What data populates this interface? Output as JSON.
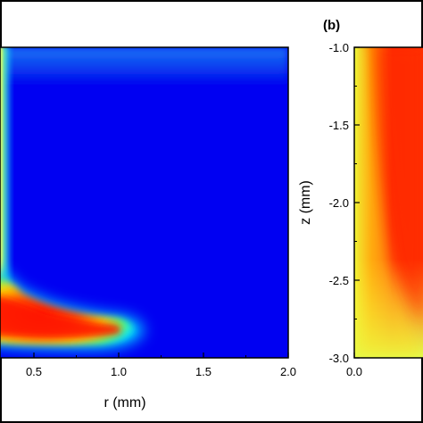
{
  "chart_data": [
    {
      "type": "heatmap",
      "panel_label": "",
      "xlabel": "r (mm)",
      "ylabel": "",
      "xlim": [
        0.3,
        2.0
      ],
      "x_ticks": [
        "0.5",
        "1.0",
        "1.5",
        "2.0"
      ],
      "y_ticks": [],
      "colormap": [
        "#0000ff",
        "#0080ff",
        "#00e0ff",
        "#00ff80",
        "#ffff00",
        "#ff8000",
        "#ff2000"
      ],
      "description_values": {
        "vertical_band_r": 0.32,
        "horizontal_band_r_max": 1.15,
        "horizontal_band_z_fraction": 0.88
      }
    },
    {
      "type": "heatmap",
      "panel_label": "(b)",
      "xlabel": "",
      "ylabel": "z (mm)",
      "ylim": [
        -3.0,
        -1.0
      ],
      "x_ticks": [
        "0.0"
      ],
      "y_ticks": [
        "-1.0",
        "-1.5",
        "-2.0",
        "-2.5",
        "-3.0"
      ],
      "colormap": [
        "#ffff00",
        "#ff8000",
        "#ff2000"
      ]
    }
  ]
}
